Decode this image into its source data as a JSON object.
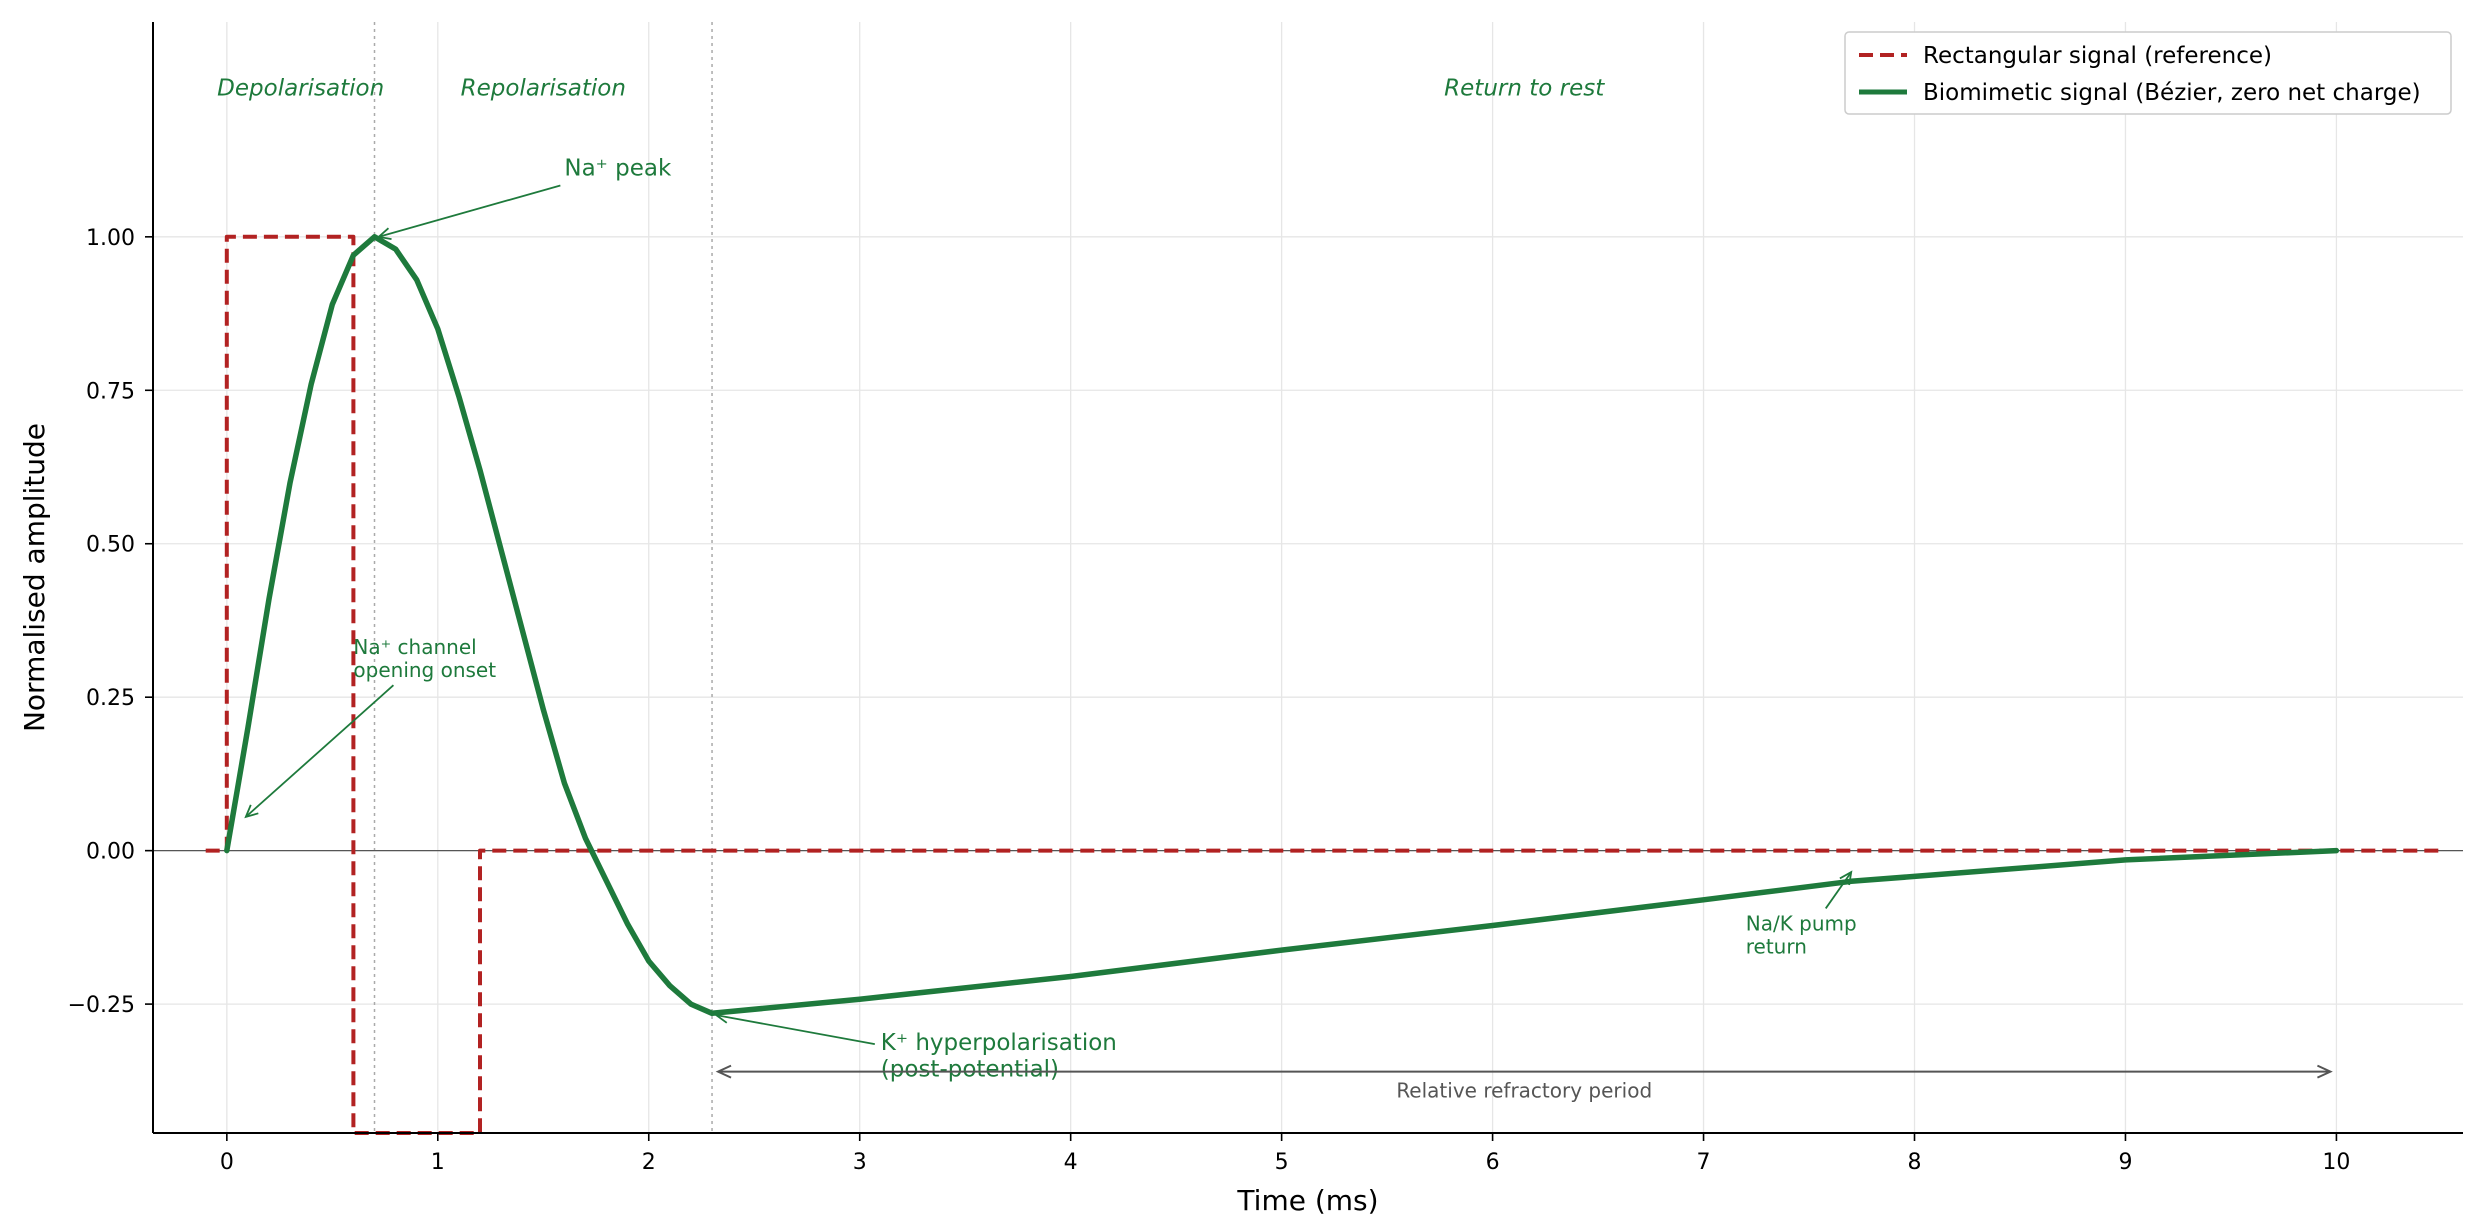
{
  "chart_data": {
    "type": "line",
    "xlabel": "Time (ms)",
    "ylabel": "Normalised amplitude",
    "xlim": [
      -0.35,
      10.6
    ],
    "ylim": [
      -0.46,
      1.35
    ],
    "xticks": [
      0,
      1,
      2,
      3,
      4,
      5,
      6,
      7,
      8,
      9,
      10
    ],
    "xtick_labels": [
      "0",
      "1",
      "2",
      "3",
      "4",
      "5",
      "6",
      "7",
      "8",
      "9",
      "10"
    ],
    "yticks": [
      -0.25,
      0,
      0.25,
      0.5,
      0.75,
      1.0
    ],
    "ytick_labels": [
      "−0.25",
      "0.00",
      "0.25",
      "0.50",
      "0.75",
      "1.00"
    ],
    "grid": true,
    "legend_position": "top-right",
    "series": [
      {
        "name": "Rectangular signal (reference)",
        "color": "#b22222",
        "style": "dashed",
        "x": [
          -0.1,
          0,
          0,
          0.6,
          0.6,
          1.2,
          1.2,
          10.5
        ],
        "y": [
          0,
          0,
          1,
          1,
          -0.46,
          -0.46,
          0,
          0
        ]
      },
      {
        "name": "Biomimetic signal (Bézier, zero net charge)",
        "color": "#1e7a3c",
        "style": "solid",
        "x": [
          0,
          0.05,
          0.1,
          0.2,
          0.3,
          0.4,
          0.5,
          0.6,
          0.7,
          0.8,
          0.9,
          1.0,
          1.1,
          1.2,
          1.3,
          1.4,
          1.5,
          1.6,
          1.7,
          1.8,
          1.9,
          2.0,
          2.1,
          2.2,
          2.3,
          3.0,
          4.0,
          5.0,
          6.0,
          7.0,
          7.7,
          8.0,
          9.0,
          10.0
        ],
        "y": [
          0,
          0.1,
          0.2,
          0.41,
          0.6,
          0.76,
          0.89,
          0.97,
          1.0,
          0.98,
          0.93,
          0.85,
          0.74,
          0.62,
          0.49,
          0.36,
          0.23,
          0.11,
          0.02,
          -0.05,
          -0.12,
          -0.18,
          -0.22,
          -0.25,
          -0.265,
          -0.242,
          -0.205,
          -0.162,
          -0.122,
          -0.08,
          -0.05,
          -0.042,
          -0.015,
          0
        ]
      }
    ],
    "phase_dividers": [
      0.7,
      2.3
    ],
    "phase_labels": [
      {
        "text": "Depolarisation",
        "x": 0.35,
        "y": 1.23
      },
      {
        "text": "Repolarisation",
        "x": 1.5,
        "y": 1.23
      },
      {
        "text": "Return to rest",
        "x": 6.15,
        "y": 1.23
      }
    ],
    "annotations": [
      {
        "lines": [
          "Na⁺ peak"
        ],
        "x": 1.6,
        "y": 1.1,
        "target_x": 0.72,
        "target_y": 1.0,
        "size": "large"
      },
      {
        "lines": [
          "Na⁺ channel",
          "opening onset"
        ],
        "x": 0.6,
        "y": 0.32,
        "target_x": 0.09,
        "target_y": 0.055,
        "size": "small"
      },
      {
        "lines": [
          "K⁺ hyperpolarisation",
          "(post-potential)"
        ],
        "x": 3.1,
        "y": -0.325,
        "target_x": 2.32,
        "target_y": -0.268,
        "size": "large"
      },
      {
        "lines": [
          "Na/K pump",
          "return"
        ],
        "x": 7.2,
        "y": -0.13,
        "target_x": 7.7,
        "target_y": -0.035,
        "size": "small"
      }
    ],
    "refractory": {
      "label": "Relative refractory period",
      "x_start": 2.3,
      "x_end": 10.0,
      "y": -0.36
    }
  }
}
